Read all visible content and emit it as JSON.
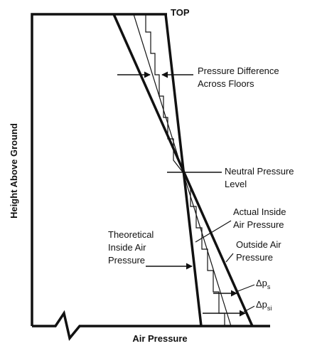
{
  "top_label": "TOP",
  "pressure_difference": {
    "lines": [
      "Pressure Difference",
      "Across Floors"
    ]
  },
  "neutral_pressure": {
    "lines": [
      "Neutral Pressure",
      "Level"
    ]
  },
  "actual_inside": {
    "lines": [
      "Actual Inside",
      "Air Pressure"
    ]
  },
  "outside_air": {
    "lines": [
      "Outside Air",
      "Pressure"
    ]
  },
  "theoretical_inside": {
    "lines": [
      "Theoretical",
      "Inside Air",
      "Pressure"
    ]
  },
  "delta_s": {
    "base": "Δp",
    "sub": "s"
  },
  "delta_si": {
    "base": "Δp",
    "sub": "si"
  },
  "y_axis_label": "Height Above Ground",
  "x_axis_label": "Air Pressure"
}
